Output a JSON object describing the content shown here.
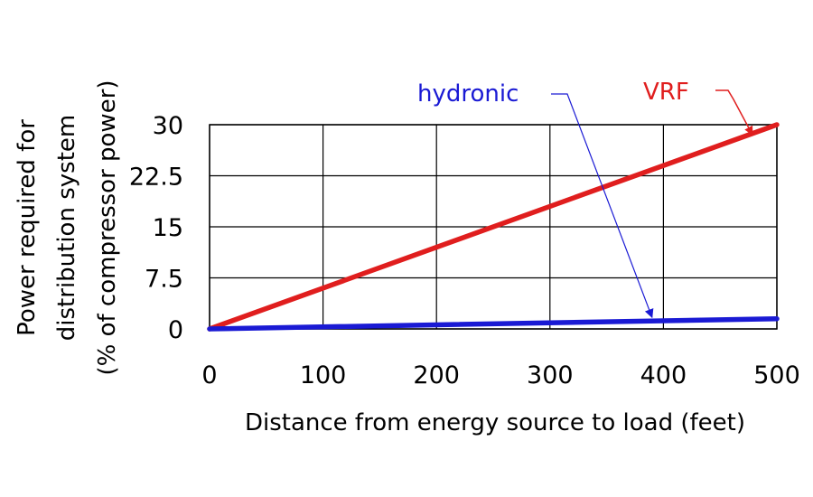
{
  "chart_data": {
    "type": "line",
    "title": "",
    "xlabel": "Distance from energy source to load (feet)",
    "ylabel_lines": [
      "Power required for",
      "distribution system",
      "(% of compressor power)"
    ],
    "xlim": [
      0,
      500
    ],
    "ylim": [
      0,
      30
    ],
    "xticks": [
      "0",
      "100",
      "200",
      "300",
      "400",
      "500"
    ],
    "yticks": [
      "0",
      "7.5",
      "15",
      "22.5",
      "30"
    ],
    "grid": true,
    "legend": "none",
    "series": [
      {
        "name": "VRF",
        "color": "#e01e1e",
        "x": [
          0,
          500
        ],
        "y": [
          0,
          30
        ]
      },
      {
        "name": "hydronic",
        "color": "#1a1ad4",
        "x": [
          0,
          500
        ],
        "y": [
          0,
          1.5
        ]
      }
    ]
  }
}
